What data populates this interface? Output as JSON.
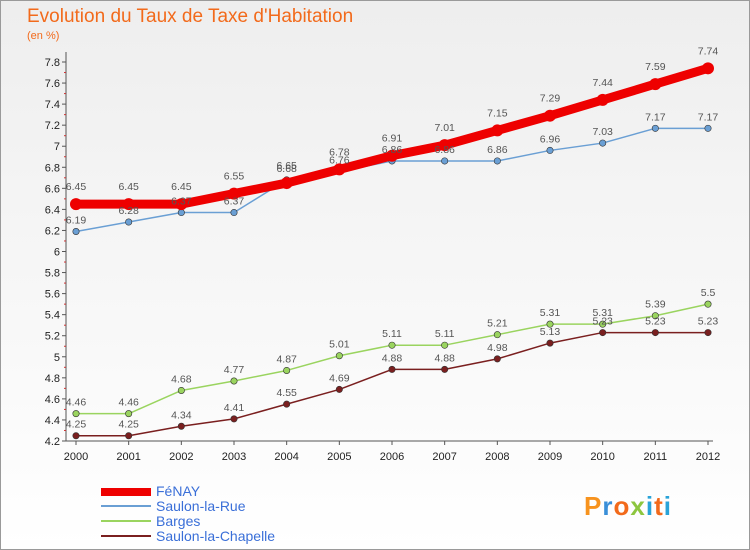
{
  "chart_data": {
    "type": "line",
    "title": "Evolution du Taux de Taxe d'Habitation",
    "subtitle": "(en %)",
    "x": [
      "2000",
      "2001",
      "2002",
      "2003",
      "2004",
      "2005",
      "2006",
      "2007",
      "2008",
      "2009",
      "2010",
      "2011",
      "2012"
    ],
    "ylim": [
      4.2,
      7.8
    ],
    "y_ticks": [
      "4.2",
      "4.4",
      "4.6",
      "4.8",
      "5",
      "5.2",
      "5.4",
      "5.6",
      "5.8",
      "6",
      "6.2",
      "6.4",
      "6.6",
      "6.8",
      "7",
      "7.2",
      "7.4",
      "7.6",
      "7.8"
    ],
    "grid": false,
    "legend_position": "bottom-left",
    "series": [
      {
        "name": "FéNAY",
        "color": "#ee0000",
        "values": [
          6.45,
          6.45,
          6.45,
          6.55,
          6.65,
          6.78,
          6.91,
          7.01,
          7.15,
          7.29,
          7.44,
          7.59,
          7.74
        ],
        "labels": [
          "6.45",
          "6.45",
          "6.45",
          "6.55",
          "6.65",
          "6.78",
          "6.91",
          "7.01",
          "7.15",
          "7.29",
          "7.44",
          "7.59",
          "7.74"
        ]
      },
      {
        "name": "Saulon-la-Rue",
        "color": "#6a9fd4",
        "values": [
          6.19,
          6.28,
          6.37,
          6.37,
          6.68,
          6.76,
          6.86,
          6.86,
          6.86,
          6.96,
          7.03,
          7.17,
          7.17
        ],
        "labels": [
          "6.19",
          "6.28",
          "6.37",
          "6.37",
          "6.68",
          "6.76",
          "6.86",
          "6.86",
          "6.86",
          "6.96",
          "7.03",
          "7.17",
          "7.17"
        ]
      },
      {
        "name": "Barges",
        "color": "#9ad45f",
        "values": [
          4.46,
          4.46,
          4.68,
          4.77,
          4.87,
          5.01,
          5.11,
          5.11,
          5.21,
          5.31,
          5.31,
          5.39,
          5.5
        ],
        "labels": [
          "4.46",
          "4.46",
          "4.68",
          "4.77",
          "4.87",
          "5.01",
          "5.11",
          "5.11",
          "5.21",
          "5.31",
          "5.31",
          "5.39",
          "5.5"
        ]
      },
      {
        "name": "Saulon-la-Chapelle",
        "color": "#7a1f1f",
        "values": [
          4.25,
          4.25,
          4.34,
          4.41,
          4.55,
          4.69,
          4.88,
          4.88,
          4.98,
          5.13,
          5.23,
          5.23,
          5.23
        ],
        "labels": [
          "4.25",
          "4.25",
          "4.34",
          "4.41",
          "4.55",
          "4.69",
          "4.88",
          "4.88",
          "4.98",
          "5.13",
          "5.23",
          "5.23",
          "5.23"
        ]
      }
    ]
  },
  "brand": {
    "logo_text": "Proxiti"
  }
}
